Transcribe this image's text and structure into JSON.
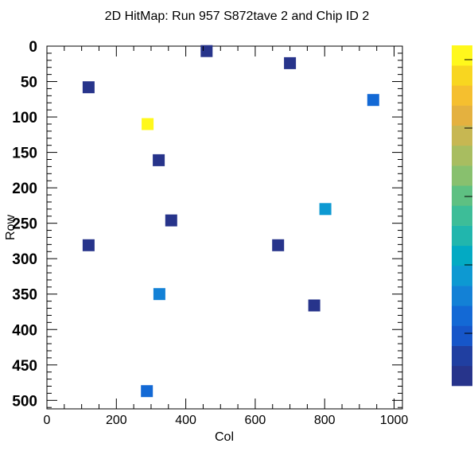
{
  "chart_data": {
    "type": "heatmap",
    "title": "2D HitMap: Run 957 S872tave 2 and Chip ID 2",
    "xlabel": "Col",
    "ylabel": "Row",
    "xlim": [
      0,
      1024
    ],
    "ylim": [
      0,
      512
    ],
    "y_inverted": true,
    "x_ticks": [
      0,
      200,
      400,
      600,
      800,
      1000
    ],
    "y_ticks": [
      0,
      50,
      100,
      150,
      200,
      250,
      300,
      350,
      400,
      450,
      500
    ],
    "palette": [
      "#27348b",
      "#203fa1",
      "#1656c9",
      "#1369d5",
      "#1381d6",
      "#0d99d2",
      "#03aac3",
      "#21b6ad",
      "#3dbd98",
      "#5ec082",
      "#88c06e",
      "#a8bd60",
      "#c7b752",
      "#e4b13f",
      "#f5bf2f",
      "#f8d620",
      "#fff81c"
    ],
    "points": [
      {
        "col": 460,
        "row": 7,
        "level": 0
      },
      {
        "col": 700,
        "row": 24,
        "level": 0
      },
      {
        "col": 120,
        "row": 58,
        "level": 0
      },
      {
        "col": 940,
        "row": 76,
        "level": 3
      },
      {
        "col": 290,
        "row": 110,
        "level": 16
      },
      {
        "col": 322,
        "row": 161,
        "level": 0
      },
      {
        "col": 802,
        "row": 230,
        "level": 5
      },
      {
        "col": 358,
        "row": 246,
        "level": 0
      },
      {
        "col": 120,
        "row": 281,
        "level": 0
      },
      {
        "col": 666,
        "row": 281,
        "level": 0
      },
      {
        "col": 324,
        "row": 350,
        "level": 4
      },
      {
        "col": 770,
        "row": 366,
        "level": 0
      },
      {
        "col": 288,
        "row": 487,
        "level": 3
      }
    ]
  }
}
